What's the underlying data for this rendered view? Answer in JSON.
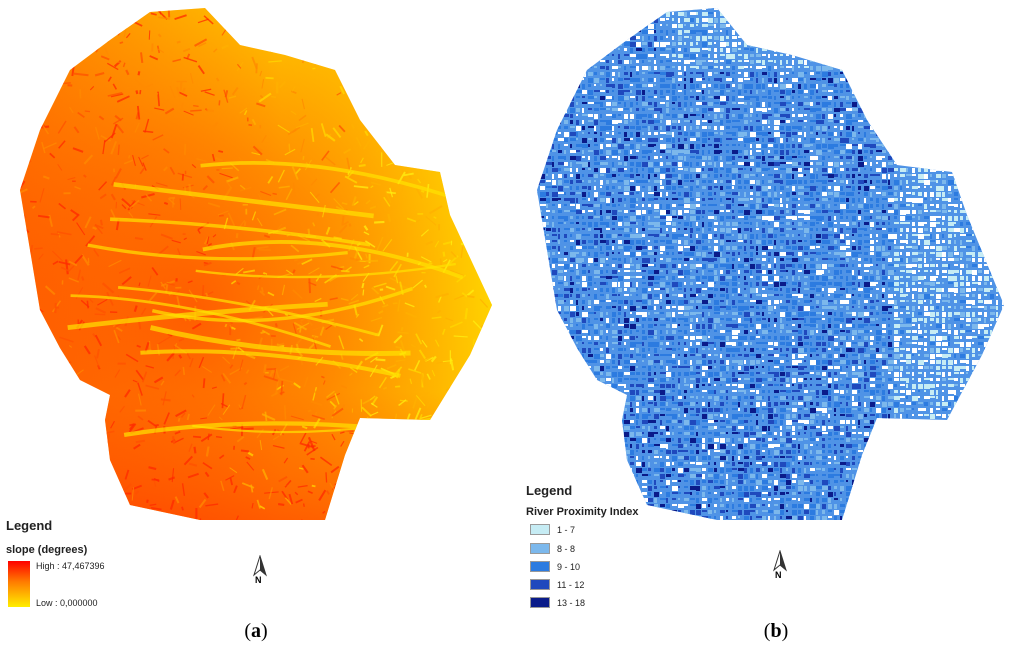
{
  "panel_a": {
    "legend_title": "Legend",
    "legend_field": "slope (degrees)",
    "high_label": "High : 47,467396",
    "low_label": "Low : 0,000000",
    "ramp_colors": [
      "#ff0000",
      "#ff7b00",
      "#ffee00"
    ],
    "north_label": "N",
    "caption_open": "(",
    "caption_letter": "a",
    "caption_close": ")"
  },
  "panel_b": {
    "legend_title": "Legend",
    "legend_field": "River Proximity Index",
    "classes": [
      {
        "label": "1 - 7",
        "color": "#c6ecf4"
      },
      {
        "label": "8 - 8",
        "color": "#7cb8ec"
      },
      {
        "label": "9 - 10",
        "color": "#2c7be0"
      },
      {
        "label": "11 - 12",
        "color": "#1f49bd"
      },
      {
        "label": "13 - 18",
        "color": "#0a1b8a"
      }
    ],
    "north_label": "N",
    "caption_open": "(",
    "caption_letter": "b",
    "caption_close": ")"
  }
}
